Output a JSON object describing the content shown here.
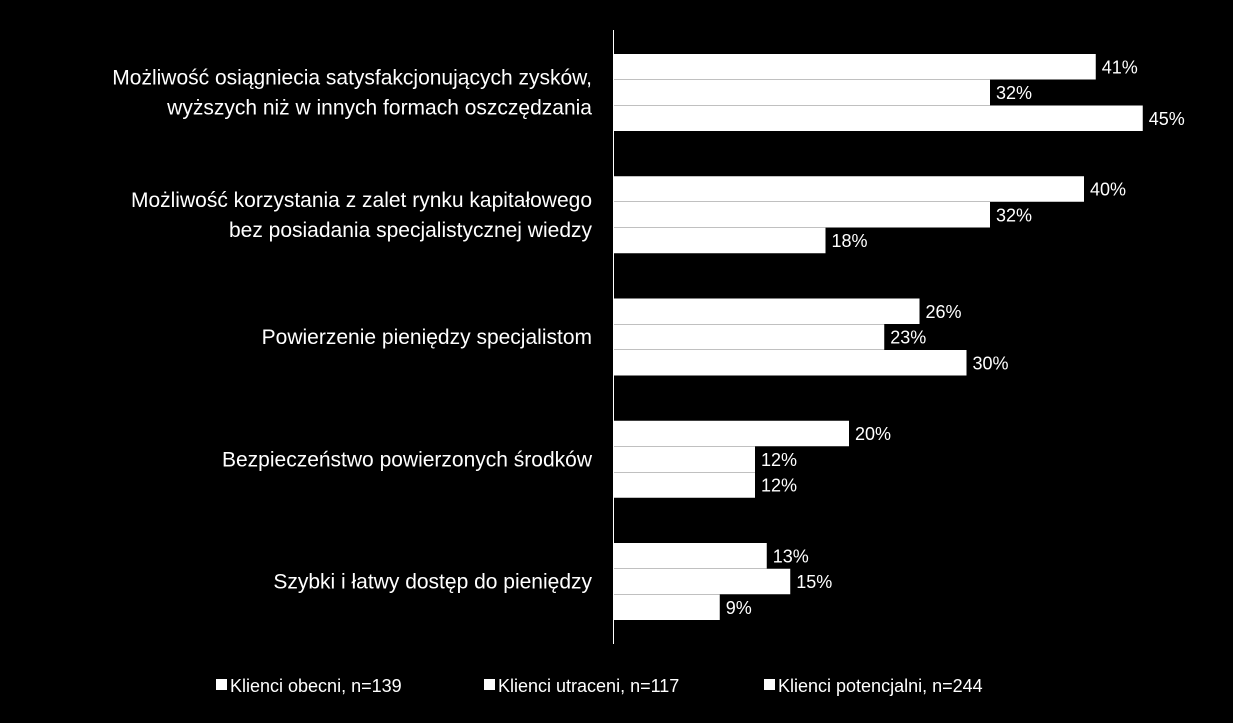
{
  "chart_data": {
    "type": "bar",
    "orientation": "horizontal",
    "categories": [
      [
        "Możliwość osiągniecia satysfakcjonujących zysków,",
        "wyższych niż w innych formach oszczędzania"
      ],
      [
        "Możliwość korzystania z zalet rynku kapitałowego",
        "bez posiadania specjalistycznej wiedzy"
      ],
      [
        "Powierzenie pieniędzy specjalistom"
      ],
      [
        "Bezpieczeństwo powierzonych środków"
      ],
      [
        "Szybki i łatwy dostęp do pieniędzy"
      ]
    ],
    "series": [
      {
        "name": "Klienci obecni, n=139",
        "values": [
          41,
          40,
          26,
          20,
          13
        ],
        "labels": [
          "41%",
          "40%",
          "26%",
          "20%",
          "13%"
        ]
      },
      {
        "name": "Klienci utraceni, n=117",
        "values": [
          32,
          32,
          23,
          12,
          15
        ],
        "labels": [
          "32%",
          "32%",
          "23%",
          "12%",
          "15%"
        ]
      },
      {
        "name": "Klienci potencjalni, n=244",
        "values": [
          45,
          18,
          30,
          12,
          9
        ],
        "labels": [
          "45%",
          "18%",
          "30%",
          "12%",
          "9%"
        ]
      }
    ],
    "xlim": [
      0,
      50
    ],
    "grid": false,
    "legend_position": "bottom",
    "colors": {
      "background": "#000000",
      "bars": "#ffffff",
      "text": "#ffffff"
    }
  }
}
